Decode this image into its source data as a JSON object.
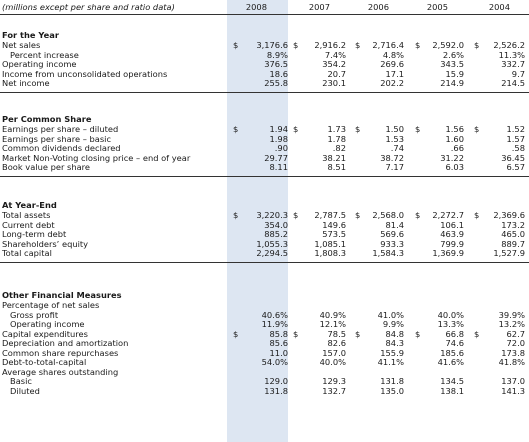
{
  "header": {
    "note": "(millions except per share and ratio data)",
    "years": [
      "2008",
      "2007",
      "2006",
      "2005",
      "2004"
    ]
  },
  "sections": [
    {
      "title": "For the Year",
      "rows": [
        {
          "label": "Net sales",
          "indent": false,
          "cur": [
            true,
            true,
            true,
            true,
            true
          ],
          "values": [
            "3,176.6",
            "2,916.2",
            "2,716.4",
            "2,592.0",
            "2,526.2"
          ]
        },
        {
          "label": "Percent increase",
          "indent": true,
          "cur": [
            false,
            false,
            false,
            false,
            false
          ],
          "values": [
            "8.9%",
            "7.4%",
            "4.8%",
            "2.6%",
            "11.3%"
          ]
        },
        {
          "label": "Operating income",
          "indent": false,
          "cur": [
            false,
            false,
            false,
            false,
            false
          ],
          "values": [
            "376.5",
            "354.2",
            "269.6",
            "343.5",
            "332.7"
          ]
        },
        {
          "label": "Income from unconsolidated operations",
          "indent": false,
          "cur": [
            false,
            false,
            false,
            false,
            false
          ],
          "values": [
            "18.6",
            "20.7",
            "17.1",
            "15.9",
            "9.7"
          ]
        },
        {
          "label": "Net income",
          "indent": false,
          "cur": [
            false,
            false,
            false,
            false,
            false
          ],
          "values": [
            "255.8",
            "230.1",
            "202.2",
            "214.9",
            "214.5"
          ]
        }
      ]
    },
    {
      "title": "Per Common Share",
      "rows": [
        {
          "label": "Earnings per share – diluted",
          "indent": false,
          "cur": [
            true,
            true,
            true,
            true,
            true
          ],
          "values": [
            "1.94",
            "1.73",
            "1.50",
            "1.56",
            "1.52"
          ]
        },
        {
          "label": "Earnings per share – basic",
          "indent": false,
          "cur": [
            false,
            false,
            false,
            false,
            false
          ],
          "values": [
            "1.98",
            "1.78",
            "1.53",
            "1.60",
            "1.57"
          ]
        },
        {
          "label": "Common dividends declared",
          "indent": false,
          "cur": [
            false,
            false,
            false,
            false,
            false
          ],
          "values": [
            ".90",
            ".82",
            ".74",
            ".66",
            ".58"
          ]
        },
        {
          "label": "Market Non-Voting closing price – end of year",
          "indent": false,
          "cur": [
            false,
            false,
            false,
            false,
            false
          ],
          "values": [
            "29.77",
            "38.21",
            "38.72",
            "31.22",
            "36.45"
          ]
        },
        {
          "label": "Book value per share",
          "indent": false,
          "cur": [
            false,
            false,
            false,
            false,
            false
          ],
          "values": [
            "8.11",
            "8.51",
            "7.17",
            "6.03",
            "6.57"
          ]
        }
      ]
    },
    {
      "title": "At Year-End",
      "rows": [
        {
          "label": "Total assets",
          "indent": false,
          "cur": [
            true,
            true,
            true,
            true,
            true
          ],
          "values": [
            "3,220.3",
            "2,787.5",
            "2,568.0",
            "2,272.7",
            "2,369.6"
          ]
        },
        {
          "label": "Current debt",
          "indent": false,
          "cur": [
            false,
            false,
            false,
            false,
            false
          ],
          "values": [
            "354.0",
            "149.6",
            "81.4",
            "106.1",
            "173.2"
          ]
        },
        {
          "label": "Long-term debt",
          "indent": false,
          "cur": [
            false,
            false,
            false,
            false,
            false
          ],
          "values": [
            "885.2",
            "573.5",
            "569.6",
            "463.9",
            "465.0"
          ]
        },
        {
          "label": "Shareholders’ equity",
          "indent": false,
          "cur": [
            false,
            false,
            false,
            false,
            false
          ],
          "values": [
            "1,055.3",
            "1,085.1",
            "933.3",
            "799.9",
            "889.7"
          ]
        },
        {
          "label": "Total capital",
          "indent": false,
          "cur": [
            false,
            false,
            false,
            false,
            false
          ],
          "values": [
            "2,294.5",
            "1,808.3",
            "1,584.3",
            "1,369.9",
            "1,527.9"
          ]
        }
      ]
    },
    {
      "title": "Other Financial Measures",
      "rows": [
        {
          "label": "Percentage of net sales",
          "indent": false,
          "cur": [
            false,
            false,
            false,
            false,
            false
          ],
          "values": [
            "",
            "",
            "",
            "",
            ""
          ]
        },
        {
          "label": "Gross profit",
          "indent": true,
          "cur": [
            false,
            false,
            false,
            false,
            false
          ],
          "values": [
            "40.6%",
            "40.9%",
            "41.0%",
            "40.0%",
            "39.9%"
          ]
        },
        {
          "label": "Operating income",
          "indent": true,
          "cur": [
            false,
            false,
            false,
            false,
            false
          ],
          "values": [
            "11.9%",
            "12.1%",
            "9.9%",
            "13.3%",
            "13.2%"
          ]
        },
        {
          "label": "Capital expenditures",
          "indent": false,
          "cur": [
            true,
            true,
            true,
            true,
            true
          ],
          "values": [
            "85.8",
            "78.5",
            "84.8",
            "66.8",
            "62.7"
          ]
        },
        {
          "label": "Depreciation and amortization",
          "indent": false,
          "cur": [
            false,
            false,
            false,
            false,
            false
          ],
          "values": [
            "85.6",
            "82.6",
            "84.3",
            "74.6",
            "72.0"
          ]
        },
        {
          "label": "Common share repurchases",
          "indent": false,
          "cur": [
            false,
            false,
            false,
            false,
            false
          ],
          "values": [
            "11.0",
            "157.0",
            "155.9",
            "185.6",
            "173.8"
          ]
        },
        {
          "label": "Debt-to-total-capital",
          "indent": false,
          "cur": [
            false,
            false,
            false,
            false,
            false
          ],
          "values": [
            "54.0%",
            "40.0%",
            "41.1%",
            "41.6%",
            "41.8%"
          ]
        },
        {
          "label": "Average shares outstanding",
          "indent": false,
          "cur": [
            false,
            false,
            false,
            false,
            false
          ],
          "values": [
            "",
            "",
            "",
            "",
            ""
          ]
        },
        {
          "label": "Basic",
          "indent": true,
          "cur": [
            false,
            false,
            false,
            false,
            false
          ],
          "values": [
            "129.0",
            "129.3",
            "131.8",
            "134.5",
            "137.0"
          ]
        },
        {
          "label": "Diluted",
          "indent": true,
          "cur": [
            false,
            false,
            false,
            false,
            false
          ],
          "values": [
            "131.8",
            "132.7",
            "135.0",
            "138.1",
            "141.3"
          ]
        }
      ]
    }
  ],
  "currency_symbol": "$",
  "colors": {
    "highlight_column": "#dde6f2",
    "rule": "#333333",
    "text": "#1a1a1a"
  }
}
